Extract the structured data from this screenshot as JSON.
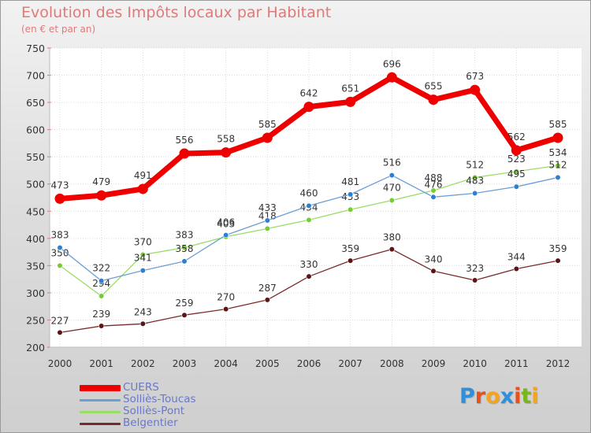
{
  "header": {
    "title": "Evolution des Impôts locaux par Habitant",
    "subtitle": "(en € et par an)"
  },
  "brand": {
    "letters": [
      "P",
      "r",
      "o",
      "x",
      "i",
      "t",
      "i"
    ],
    "colors": [
      "#2f8fd8",
      "#e8501e",
      "#f4a41d",
      "#2f8fd8",
      "#e8501e",
      "#7ab51d",
      "#f4a41d"
    ]
  },
  "chart_data": {
    "type": "line",
    "title": "Evolution des Impôts locaux par Habitant",
    "subtitle": "(en € et par an)",
    "xlabel": "",
    "ylabel": "",
    "x": [
      "2000",
      "2001",
      "2002",
      "2003",
      "2004",
      "2005",
      "2006",
      "2007",
      "2008",
      "2009",
      "2010",
      "2011",
      "2012"
    ],
    "ylim": [
      200,
      750
    ],
    "yticks": [
      200,
      250,
      300,
      350,
      400,
      450,
      500,
      550,
      600,
      650,
      700,
      750
    ],
    "grid": true,
    "legend_position": "bottom-left",
    "series": [
      {
        "name": "CUERS",
        "color": "#ee0000",
        "emphasis": true,
        "values": [
          473,
          479,
          491,
          556,
          558,
          585,
          642,
          651,
          696,
          655,
          673,
          562,
          585
        ]
      },
      {
        "name": "Solliès-Toucas",
        "color": "#6b9fd4",
        "marker": "#2f7fd0",
        "values": [
          383,
          322,
          341,
          358,
          406,
          433,
          460,
          481,
          516,
          476,
          483,
          495,
          512
        ]
      },
      {
        "name": "Solliès-Pont",
        "color": "#99dd66",
        "marker": "#77cc33",
        "values": [
          350,
          294,
          370,
          383,
          403,
          418,
          434,
          453,
          470,
          488,
          512,
          523,
          534
        ]
      },
      {
        "name": "Belgentier",
        "color": "#7a2a2a",
        "marker": "#5a1515",
        "values": [
          227,
          239,
          243,
          259,
          270,
          287,
          330,
          359,
          380,
          340,
          323,
          344,
          359
        ]
      }
    ]
  }
}
